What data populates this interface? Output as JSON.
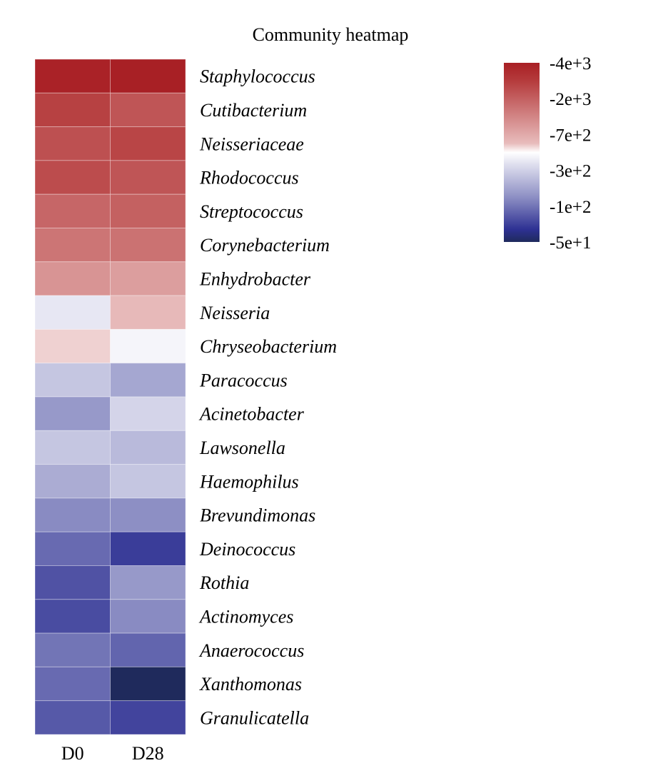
{
  "chart_data": {
    "type": "heatmap",
    "title": "Community heatmap",
    "columns": [
      "D0",
      "D28"
    ],
    "rows": [
      {
        "name": "Staphylococcus",
        "values": [
          -3800,
          -3950
        ]
      },
      {
        "name": "Cutibacterium",
        "values": [
          -2400,
          -1900
        ]
      },
      {
        "name": "Neisseriaceae",
        "values": [
          -2000,
          -2300
        ]
      },
      {
        "name": "Rhodococcus",
        "values": [
          -2100,
          -1900
        ]
      },
      {
        "name": "Streptococcus",
        "values": [
          -1550,
          -1650
        ]
      },
      {
        "name": "Corynebacterium",
        "values": [
          -1300,
          -1350
        ]
      },
      {
        "name": "Enhydrobacter",
        "values": [
          -900,
          -800
        ]
      },
      {
        "name": "Neisseria",
        "values": [
          -360,
          -580
        ]
      },
      {
        "name": "Chryseobacterium",
        "values": [
          -520,
          -410
        ]
      },
      {
        "name": "Paracoccus",
        "values": [
          -260,
          -190
        ]
      },
      {
        "name": "Acinetobacter",
        "values": [
          -165,
          -300
        ]
      },
      {
        "name": "Lawsonella",
        "values": [
          -260,
          -230
        ]
      },
      {
        "name": "Haemophilus",
        "values": [
          -200,
          -260
        ]
      },
      {
        "name": "Brevundimonas",
        "values": [
          -145,
          -150
        ]
      },
      {
        "name": "Deinococcus",
        "values": [
          -110,
          -75
        ]
      },
      {
        "name": "Rothia",
        "values": [
          -90,
          -165
        ]
      },
      {
        "name": "Actinomyces",
        "values": [
          -85,
          -145
        ]
      },
      {
        "name": "Anaerococcus",
        "values": [
          -120,
          -105
        ]
      },
      {
        "name": "Xanthomonas",
        "values": [
          -110,
          -50
        ]
      },
      {
        "name": "Granulicatella",
        "values": [
          -95,
          -80
        ]
      }
    ],
    "colorbar": {
      "ticks": [
        "-4e+3",
        "-2e+3",
        "-7e+2",
        "-3e+2",
        "-1e+2",
        "-5e+1"
      ],
      "colors": [
        "#a81f24",
        "#ffffff",
        "#1f2a5c"
      ]
    }
  }
}
